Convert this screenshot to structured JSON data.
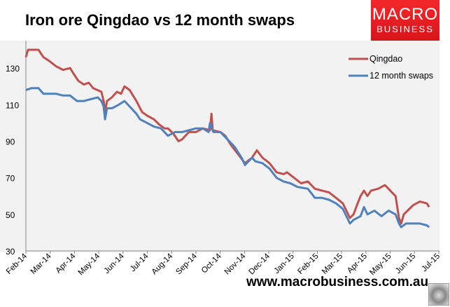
{
  "logo": {
    "line1": "MACRO",
    "line2": "BUSINESS"
  },
  "footer": "www.macrobusiness.com.au",
  "chart_data": {
    "type": "line",
    "title": "Iron ore Qingdao vs 12 month swaps",
    "xlabel": "",
    "ylabel": "",
    "x_unit": "months since Feb-14",
    "xlim": [
      0,
      17
    ],
    "ylim": [
      30,
      145
    ],
    "yticks": [
      30,
      50,
      70,
      90,
      110,
      130
    ],
    "xtick_labels": [
      "Feb-14",
      "Mar-14",
      "Apr-14",
      "May-14",
      "Jun-14",
      "Jul-14",
      "Aug-14",
      "Sep-14",
      "Oct-14",
      "Nov-14",
      "Dec-14",
      "Jan-15",
      "Feb-15",
      "Mar-15",
      "Apr-15",
      "May-15",
      "Jun-15",
      "Jul-15"
    ],
    "legend_position": "top-right",
    "series": [
      {
        "name": "Qingdao",
        "color": "#c0504d",
        "points": [
          [
            0,
            136
          ],
          [
            0.09,
            140
          ],
          [
            0.52,
            140
          ],
          [
            0.72,
            136
          ],
          [
            0.95,
            134
          ],
          [
            1.24,
            131
          ],
          [
            1.53,
            129
          ],
          [
            1.82,
            130
          ],
          [
            1.96,
            127
          ],
          [
            2.16,
            123
          ],
          [
            2.39,
            121
          ],
          [
            2.59,
            122
          ],
          [
            2.77,
            119
          ],
          [
            3.11,
            117
          ],
          [
            3.2,
            112
          ],
          [
            3.26,
            106
          ],
          [
            3.34,
            112
          ],
          [
            3.54,
            114
          ],
          [
            3.75,
            117
          ],
          [
            3.92,
            116
          ],
          [
            4.06,
            120
          ],
          [
            4.27,
            118
          ],
          [
            4.55,
            112
          ],
          [
            4.78,
            106
          ],
          [
            4.99,
            104
          ],
          [
            5.27,
            102
          ],
          [
            5.5,
            99
          ],
          [
            5.71,
            97
          ],
          [
            5.85,
            97
          ],
          [
            6.08,
            94
          ],
          [
            6.28,
            90
          ],
          [
            6.43,
            91
          ],
          [
            6.71,
            95
          ],
          [
            7.0,
            95
          ],
          [
            7.29,
            97
          ],
          [
            7.58,
            96
          ],
          [
            7.64,
            105
          ],
          [
            7.69,
            96
          ],
          [
            8.01,
            95
          ],
          [
            8.21,
            93
          ],
          [
            8.44,
            88
          ],
          [
            8.73,
            83
          ],
          [
            9.02,
            78
          ],
          [
            9.31,
            81
          ],
          [
            9.51,
            85
          ],
          [
            9.74,
            81
          ],
          [
            10.03,
            78
          ],
          [
            10.32,
            73
          ],
          [
            10.61,
            72
          ],
          [
            10.75,
            73
          ],
          [
            11.04,
            70
          ],
          [
            11.33,
            67
          ],
          [
            11.61,
            68
          ],
          [
            11.9,
            64
          ],
          [
            12.19,
            63
          ],
          [
            12.48,
            62
          ],
          [
            12.77,
            59
          ],
          [
            13.05,
            56
          ],
          [
            13.34,
            48
          ],
          [
            13.49,
            50
          ],
          [
            13.63,
            55
          ],
          [
            13.78,
            60
          ],
          [
            13.92,
            63
          ],
          [
            14.06,
            60
          ],
          [
            14.21,
            63
          ],
          [
            14.5,
            64
          ],
          [
            14.78,
            66
          ],
          [
            14.93,
            64
          ],
          [
            15.07,
            62
          ],
          [
            15.22,
            60
          ],
          [
            15.36,
            48
          ],
          [
            15.45,
            45
          ],
          [
            15.56,
            50
          ],
          [
            15.79,
            53
          ],
          [
            15.94,
            55
          ],
          [
            16.22,
            57
          ],
          [
            16.51,
            56
          ],
          [
            16.6,
            54
          ]
        ]
      },
      {
        "name": "12 month swaps",
        "color": "#4f81bd",
        "points": [
          [
            0,
            118
          ],
          [
            0.23,
            119
          ],
          [
            0.52,
            119
          ],
          [
            0.72,
            116
          ],
          [
            0.95,
            116
          ],
          [
            1.24,
            116
          ],
          [
            1.53,
            115
          ],
          [
            1.82,
            115
          ],
          [
            2.1,
            112
          ],
          [
            2.39,
            112
          ],
          [
            2.67,
            113
          ],
          [
            2.96,
            114
          ],
          [
            3.11,
            112
          ],
          [
            3.2,
            109
          ],
          [
            3.26,
            102
          ],
          [
            3.34,
            108
          ],
          [
            3.54,
            108
          ],
          [
            3.83,
            110
          ],
          [
            4.06,
            112
          ],
          [
            4.27,
            109
          ],
          [
            4.55,
            105
          ],
          [
            4.7,
            102
          ],
          [
            4.99,
            100
          ],
          [
            5.27,
            98
          ],
          [
            5.56,
            97
          ],
          [
            5.85,
            93
          ],
          [
            6.14,
            95
          ],
          [
            6.43,
            95
          ],
          [
            6.71,
            96
          ],
          [
            7.0,
            97
          ],
          [
            7.29,
            97
          ],
          [
            7.52,
            95
          ],
          [
            7.58,
            100
          ],
          [
            7.72,
            95
          ],
          [
            8.01,
            95
          ],
          [
            8.3,
            91
          ],
          [
            8.59,
            87
          ],
          [
            8.88,
            81
          ],
          [
            9.02,
            77
          ],
          [
            9.31,
            81
          ],
          [
            9.45,
            79
          ],
          [
            9.74,
            78
          ],
          [
            10.03,
            75
          ],
          [
            10.32,
            70
          ],
          [
            10.61,
            68
          ],
          [
            10.89,
            67
          ],
          [
            11.18,
            65
          ],
          [
            11.61,
            64
          ],
          [
            11.9,
            59
          ],
          [
            12.19,
            59
          ],
          [
            12.48,
            58
          ],
          [
            12.77,
            56
          ],
          [
            13.05,
            53
          ],
          [
            13.34,
            45
          ],
          [
            13.49,
            47
          ],
          [
            13.78,
            49
          ],
          [
            13.92,
            54
          ],
          [
            14.06,
            50
          ],
          [
            14.35,
            52
          ],
          [
            14.64,
            49
          ],
          [
            14.93,
            52
          ],
          [
            15.22,
            50
          ],
          [
            15.36,
            45
          ],
          [
            15.45,
            43
          ],
          [
            15.65,
            45
          ],
          [
            15.94,
            45
          ],
          [
            16.22,
            45
          ],
          [
            16.51,
            44
          ],
          [
            16.6,
            43
          ]
        ]
      }
    ]
  }
}
